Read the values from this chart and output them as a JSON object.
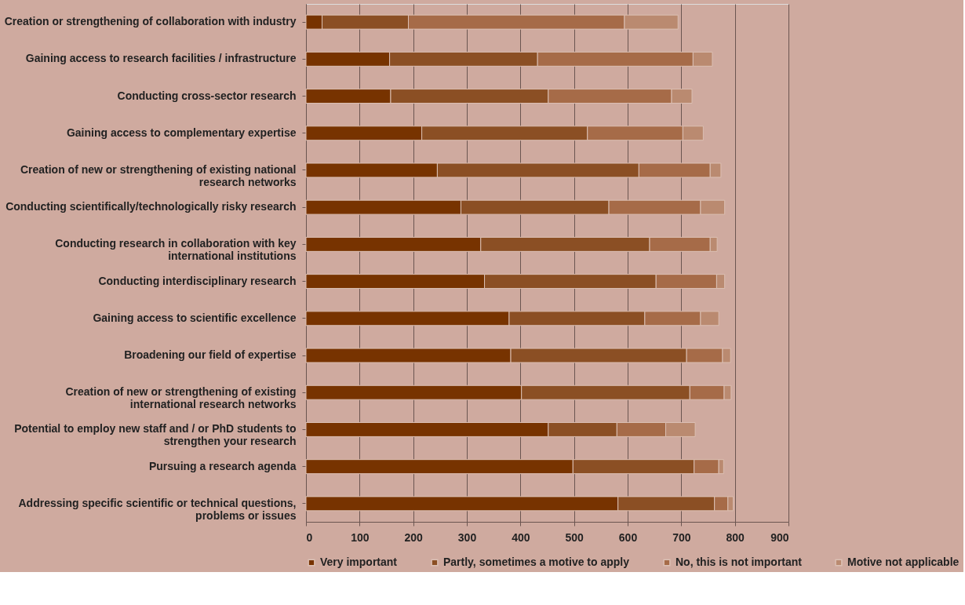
{
  "chart_data": {
    "type": "bar",
    "orientation": "horizontal",
    "stacked": true,
    "categories": [
      "Creation or strengthening of collaboration with industry",
      "Gaining access to research facilities / infrastructure",
      "Conducting cross-sector research",
      "Gaining access to complementary expertise",
      "Creation of new or strengthening of existing national research networks",
      "Conducting scientifically/technologically risky research",
      "Conducting research in collaboration with key international institutions",
      "Conducting interdisciplinary research",
      "Gaining access to scientific excellence",
      "Broadening our field of expertise",
      "Creation of new or strengthening of existing international research networks",
      "Potential to employ new staff and / or PhD students to strengthen your research",
      "Pursuing a research agenda",
      "Addressing specific scientific or technical questions, problems or issues"
    ],
    "series": [
      {
        "name": "Very important",
        "color": "#773300",
        "values": [
          30,
          156,
          158,
          216,
          245,
          289,
          326,
          333,
          379,
          382,
          402,
          452,
          498,
          582
        ]
      },
      {
        "name": "Partly, sometimes a motive to apply",
        "color": "#8b4f24",
        "values": [
          161,
          276,
          294,
          309,
          376,
          276,
          315,
          320,
          253,
          328,
          314,
          128,
          226,
          180
        ]
      },
      {
        "name": "No, this is not important",
        "color": "#a66b48",
        "values": [
          403,
          290,
          230,
          178,
          133,
          171,
          113,
          113,
          104,
          67,
          64,
          91,
          46,
          25
        ]
      },
      {
        "name": "Motive not applicable",
        "color": "#ba8a70",
        "values": [
          100,
          36,
          38,
          38,
          20,
          45,
          13,
          15,
          34,
          15,
          13,
          55,
          9,
          10
        ]
      }
    ],
    "xlim": [
      0,
      900
    ],
    "xticks": [
      0,
      100,
      200,
      300,
      400,
      500,
      600,
      700,
      800,
      900
    ],
    "grid": "x",
    "legend": "bottom"
  }
}
